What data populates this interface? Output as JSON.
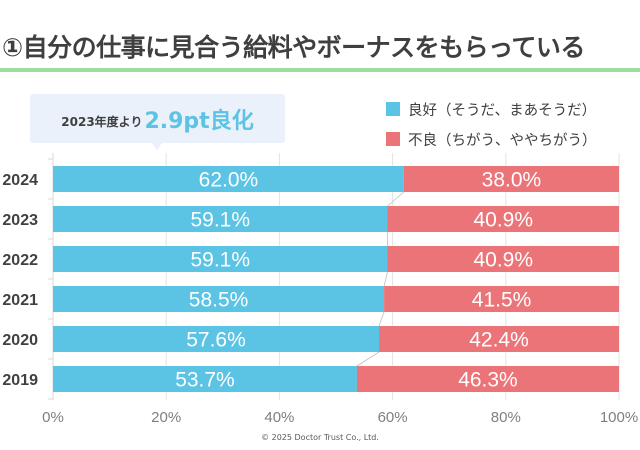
{
  "title": "①自分の仕事に見合う給料やボーナスをもらっている",
  "callout": {
    "prefix": "2023年度より",
    "highlight": "2.9pt良化"
  },
  "colors": {
    "good": "#5bc3e3",
    "bad": "#eb7479",
    "accent_rule": "#9adf9e"
  },
  "copyright": "©  2025 Doctor Trust Co., Ltd.",
  "chart_data": {
    "type": "bar",
    "orientation": "horizontal",
    "stacked": true,
    "categories": [
      "2024",
      "2023",
      "2022",
      "2021",
      "2020",
      "2019"
    ],
    "series": [
      {
        "name": "良好（そうだ、まあそうだ）",
        "color": "#5bc3e3",
        "values": [
          62.0,
          59.1,
          59.1,
          58.5,
          57.6,
          53.7
        ],
        "labels": [
          "62.0%",
          "59.1%",
          "59.1%",
          "58.5%",
          "57.6%",
          "53.7%"
        ]
      },
      {
        "name": "不良（ちがう、ややちがう）",
        "color": "#eb7479",
        "values": [
          38.0,
          40.9,
          40.9,
          41.5,
          42.4,
          46.3
        ],
        "labels": [
          "38.0%",
          "40.9%",
          "40.9%",
          "41.5%",
          "42.4%",
          "46.3%"
        ]
      }
    ],
    "xlim": [
      0,
      100
    ],
    "xticks": [
      0,
      20,
      40,
      60,
      80,
      100
    ],
    "xtick_labels": [
      "0%",
      "20%",
      "40%",
      "60%",
      "80%",
      "100%"
    ],
    "grid": true,
    "legend": "top-right",
    "series_lines": true,
    "title": "①自分の仕事に見合う給料やボーナスをもらっている",
    "xlabel": "",
    "ylabel": ""
  }
}
